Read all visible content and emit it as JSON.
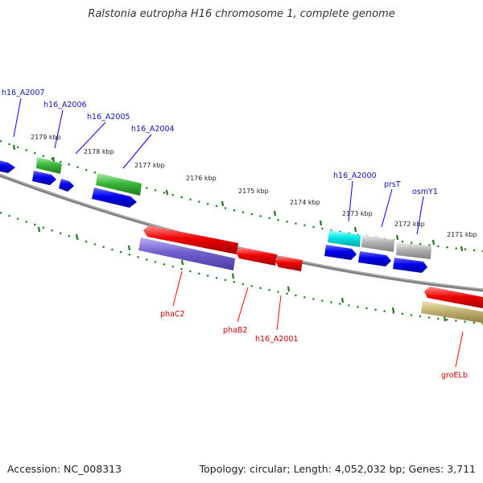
{
  "title": "Ralstonia eutropha H16 chromosome 1, complete genome",
  "footer": {
    "accession": "Accession: NC_008313",
    "summary": "Topology: circular; Length: 4,052,032 bp; Genes: 3,711"
  },
  "colors": {
    "chromosome": "#808080",
    "ticks": "#1a7a1a",
    "top_label": "#1010b0",
    "bottom_label": "#cc0000",
    "blue": "#0000ee",
    "green": "#3cb83c",
    "cyan": "#00e5e5",
    "gray": "#b0b0b0",
    "red": "#ee0000",
    "purple": "#7060d0",
    "olive": "#c0b070"
  },
  "scale_ticks": [
    "2179 kbp",
    "2178 kbp",
    "2177 kbp",
    "2176 kbp",
    "2175 kbp",
    "2174 kbp",
    "2173 kbp",
    "2172 kbp",
    "2171 kbp"
  ],
  "top_gene_labels": [
    "h16_A2007",
    "h16_A2006",
    "h16_A2005",
    "h16_A2004",
    "h16_A2000",
    "prsT",
    "osmY1"
  ],
  "bottom_gene_labels": [
    "phaC2",
    "phaB2",
    "h16_A2001",
    "groELb"
  ]
}
